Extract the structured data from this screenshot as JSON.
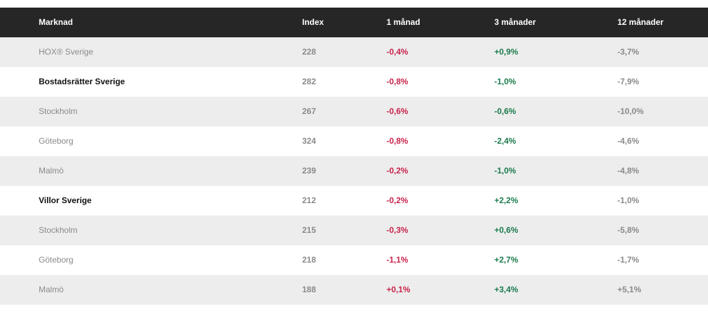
{
  "header": {
    "market": "Marknad",
    "index": "Index",
    "m1": "1 månad",
    "m3": "3 månader",
    "m12": "12 månader"
  },
  "rows": [
    {
      "market": "HOX® Sverige",
      "index": "228",
      "m1": "-0,4%",
      "m3": "+0,9%",
      "m12": "-3,7%"
    },
    {
      "market": "Bostadsrätter Sverige",
      "index": "282",
      "m1": "-0,8%",
      "m3": "-1,0%",
      "m12": "-7,9%"
    },
    {
      "market": "Stockholm",
      "index": "267",
      "m1": "-0,6%",
      "m3": "-0,6%",
      "m12": "-10,0%"
    },
    {
      "market": "Göteborg",
      "index": "324",
      "m1": "-0,8%",
      "m3": "-2,4%",
      "m12": "-4,6%"
    },
    {
      "market": "Malmö",
      "index": "239",
      "m1": "-0,2%",
      "m3": "-1,0%",
      "m12": "-4,8%"
    },
    {
      "market": "Villor Sverige",
      "index": "212",
      "m1": "-0,2%",
      "m3": "+2,2%",
      "m12": "-1,0%"
    },
    {
      "market": "Stockholm",
      "index": "215",
      "m1": "-0,3%",
      "m3": "+0,6%",
      "m12": "-5,8%"
    },
    {
      "market": "Göteborg",
      "index": "218",
      "m1": "-1,1%",
      "m3": "+2,7%",
      "m12": "-1,7%"
    },
    {
      "market": "Malmö",
      "index": "188",
      "m1": "+0,1%",
      "m3": "+3,4%",
      "m12": "+5,1%"
    }
  ],
  "colors": {
    "header_bg": "#262626",
    "row_shade": "#ededed",
    "month1": "#c8234a",
    "month3": "#1a7a4c"
  }
}
